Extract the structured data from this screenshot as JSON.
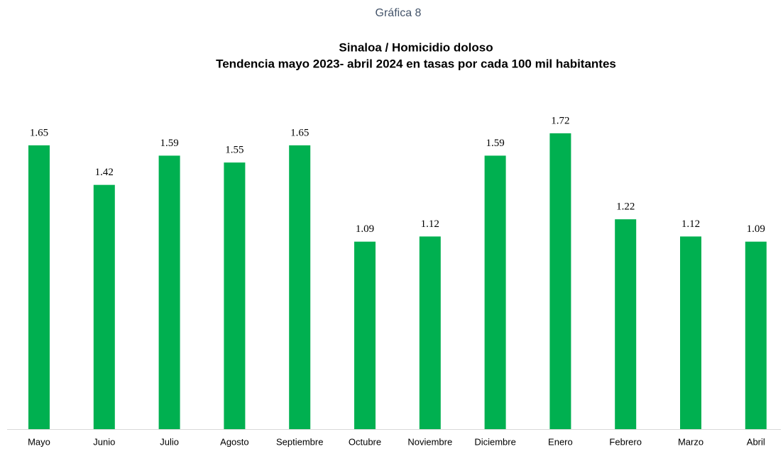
{
  "chart_data": {
    "type": "bar",
    "caption": "Gráfica 8",
    "title": "Sinaloa / Homicidio doloso",
    "subtitle": "Tendencia mayo 2023- abril 2024 en tasas por cada  100 mil habitantes",
    "categories": [
      "Mayo",
      "Junio",
      "Julio",
      "Agosto",
      "Septiembre",
      "Octubre",
      "Noviembre",
      "Diciembre",
      "Enero",
      "Febrero",
      "Marzo",
      "Abril"
    ],
    "values": [
      1.65,
      1.42,
      1.59,
      1.55,
      1.65,
      1.09,
      1.12,
      1.59,
      1.72,
      1.22,
      1.12,
      1.09
    ],
    "color": "#00b050",
    "ylim": [
      0,
      2
    ]
  }
}
